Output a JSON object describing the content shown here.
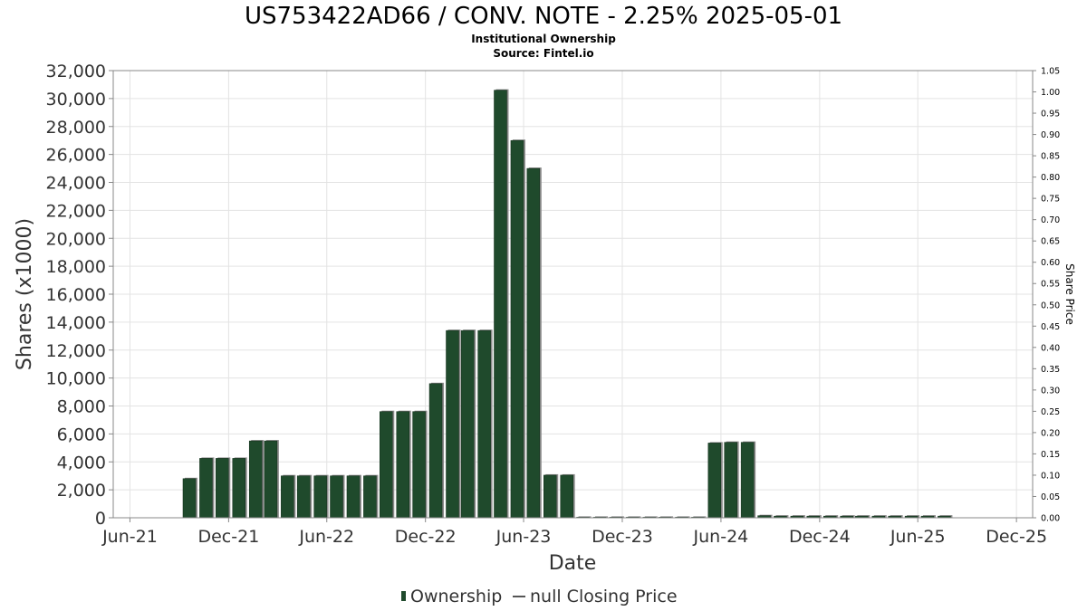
{
  "title": "US753422AD66 / CONV. NOTE - 2.25% 2025-05-01",
  "subtitle": "Institutional Ownership",
  "source": "Source: Fintel.io",
  "chart_data": {
    "type": "bar",
    "xlabel": "Date",
    "ylabel": "Shares (x1000)",
    "y2label": "Share Price",
    "ylim": [
      0,
      32000
    ],
    "y2lim": [
      0,
      1.05
    ],
    "x_ticks": [
      "Jun-21",
      "Dec-21",
      "Jun-22",
      "Dec-22",
      "Jun-23",
      "Dec-23",
      "Jun-24",
      "Dec-24",
      "Jun-25",
      "Dec-25"
    ],
    "y_ticks": [
      0,
      2000,
      4000,
      6000,
      8000,
      10000,
      12000,
      14000,
      16000,
      18000,
      20000,
      22000,
      24000,
      26000,
      28000,
      30000,
      32000
    ],
    "y2_ticks": [
      "0.00",
      "0.05",
      "0.10",
      "0.15",
      "0.20",
      "0.25",
      "0.30",
      "0.35",
      "0.40",
      "0.45",
      "0.50",
      "0.55",
      "0.60",
      "0.65",
      "0.70",
      "0.75",
      "0.80",
      "0.85",
      "0.90",
      "0.95",
      "1.00",
      "1.05"
    ],
    "grid": true,
    "legend": {
      "position": "bottom",
      "entries": [
        {
          "label": "Ownership",
          "color": "#1f4a2c"
        },
        {
          "label": "null Closing Price",
          "color": "#555555"
        }
      ]
    },
    "series": [
      {
        "name": "Ownership",
        "color": "#1f4a2c",
        "dates": [
          "2021-09-30",
          "2021-10-31",
          "2021-11-30",
          "2021-12-31",
          "2022-01-31",
          "2022-02-28",
          "2022-03-31",
          "2022-04-30",
          "2022-05-31",
          "2022-06-30",
          "2022-07-31",
          "2022-08-31",
          "2022-09-30",
          "2022-10-31",
          "2022-11-30",
          "2022-12-31",
          "2023-01-31",
          "2023-02-28",
          "2023-03-31",
          "2023-04-30",
          "2023-05-31",
          "2023-06-30",
          "2023-07-31",
          "2023-08-31",
          "2023-09-30",
          "2023-10-31",
          "2023-11-30",
          "2023-12-31",
          "2024-01-31",
          "2024-02-29",
          "2024-03-31",
          "2024-04-30",
          "2024-05-31",
          "2024-06-30",
          "2024-07-31",
          "2024-08-31",
          "2024-09-30",
          "2024-10-31",
          "2024-11-30",
          "2024-12-31",
          "2025-01-31",
          "2025-02-28",
          "2025-03-31",
          "2025-04-30",
          "2025-05-31",
          "2025-06-30",
          "2025-07-31"
        ],
        "values": [
          2800,
          4250,
          4250,
          4250,
          5500,
          5500,
          3000,
          3000,
          3000,
          3000,
          3000,
          3000,
          7600,
          7600,
          7600,
          9600,
          13400,
          13400,
          13400,
          30600,
          27000,
          25000,
          3050,
          3050,
          0,
          0,
          0,
          0,
          0,
          0,
          0,
          0,
          5350,
          5400,
          5400,
          150,
          120,
          120,
          120,
          120,
          120,
          120,
          120,
          120,
          120,
          120,
          120
        ]
      }
    ]
  }
}
